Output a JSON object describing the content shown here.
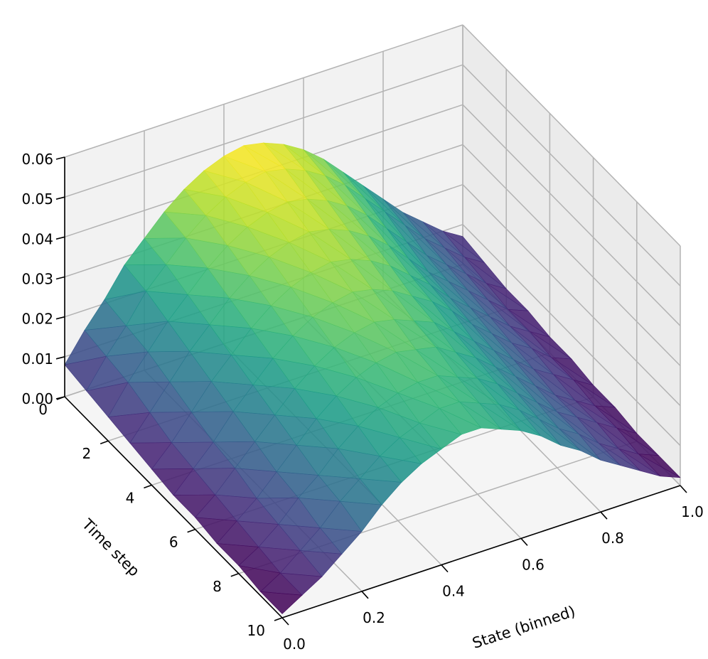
{
  "chart_data": {
    "type": "surface3d",
    "xlabel": "State (binned)",
    "ylabel": "Time step",
    "zlabel": "",
    "x_ticks": [
      "0.0",
      "0.2",
      "0.4",
      "0.6",
      "0.8",
      "1.0"
    ],
    "y_ticks": [
      "0",
      "2",
      "4",
      "6",
      "8",
      "10"
    ],
    "z_ticks": [
      "0.00",
      "0.01",
      "0.02",
      "0.03",
      "0.04",
      "0.05",
      "0.06"
    ],
    "xlim": [
      0,
      1
    ],
    "ylim": [
      0,
      10
    ],
    "zlim": [
      0,
      0.06
    ],
    "colormap": "viridis",
    "grid": true,
    "x_bins": [
      0.0,
      0.05,
      0.1,
      0.15,
      0.2,
      0.25,
      0.3,
      0.35,
      0.4,
      0.45,
      0.5,
      0.55,
      0.6,
      0.65,
      0.7,
      0.75,
      0.8,
      0.85,
      0.9,
      0.95,
      1.0
    ],
    "time_steps": [
      0,
      1,
      2,
      3,
      4,
      5,
      6,
      7,
      8,
      9,
      10
    ],
    "z": [
      [
        0.008,
        0.015,
        0.021,
        0.028,
        0.033,
        0.038,
        0.042,
        0.045,
        0.047,
        0.048,
        0.047,
        0.045,
        0.042,
        0.038,
        0.033,
        0.028,
        0.023,
        0.018,
        0.014,
        0.01,
        0.007
      ],
      [
        0.007,
        0.014,
        0.02,
        0.027,
        0.032,
        0.037,
        0.041,
        0.044,
        0.046,
        0.047,
        0.046,
        0.044,
        0.041,
        0.037,
        0.032,
        0.027,
        0.022,
        0.017,
        0.013,
        0.009,
        0.006
      ],
      [
        0.006,
        0.013,
        0.019,
        0.025,
        0.03,
        0.035,
        0.039,
        0.042,
        0.044,
        0.045,
        0.044,
        0.042,
        0.039,
        0.035,
        0.03,
        0.025,
        0.02,
        0.016,
        0.012,
        0.008,
        0.005
      ],
      [
        0.005,
        0.011,
        0.017,
        0.023,
        0.028,
        0.033,
        0.037,
        0.04,
        0.042,
        0.043,
        0.042,
        0.04,
        0.037,
        0.033,
        0.028,
        0.023,
        0.019,
        0.015,
        0.011,
        0.007,
        0.005
      ],
      [
        0.004,
        0.009,
        0.015,
        0.021,
        0.026,
        0.031,
        0.035,
        0.038,
        0.04,
        0.041,
        0.04,
        0.038,
        0.035,
        0.031,
        0.027,
        0.022,
        0.018,
        0.014,
        0.01,
        0.007,
        0.004
      ],
      [
        0.003,
        0.008,
        0.013,
        0.019,
        0.024,
        0.029,
        0.033,
        0.036,
        0.038,
        0.039,
        0.038,
        0.036,
        0.033,
        0.03,
        0.026,
        0.021,
        0.017,
        0.013,
        0.01,
        0.006,
        0.004
      ],
      [
        0.003,
        0.007,
        0.012,
        0.017,
        0.022,
        0.027,
        0.031,
        0.034,
        0.036,
        0.037,
        0.036,
        0.034,
        0.032,
        0.028,
        0.024,
        0.02,
        0.016,
        0.012,
        0.009,
        0.006,
        0.003
      ],
      [
        0.002,
        0.006,
        0.01,
        0.015,
        0.02,
        0.025,
        0.029,
        0.032,
        0.034,
        0.035,
        0.034,
        0.033,
        0.03,
        0.027,
        0.023,
        0.019,
        0.015,
        0.011,
        0.008,
        0.005,
        0.003
      ],
      [
        0.002,
        0.005,
        0.009,
        0.014,
        0.018,
        0.023,
        0.027,
        0.03,
        0.032,
        0.033,
        0.033,
        0.031,
        0.029,
        0.026,
        0.022,
        0.018,
        0.014,
        0.011,
        0.008,
        0.005,
        0.002
      ],
      [
        0.001,
        0.004,
        0.008,
        0.012,
        0.017,
        0.021,
        0.025,
        0.028,
        0.03,
        0.032,
        0.032,
        0.03,
        0.028,
        0.025,
        0.021,
        0.017,
        0.014,
        0.01,
        0.007,
        0.004,
        0.002
      ],
      [
        0.001,
        0.004,
        0.007,
        0.011,
        0.015,
        0.02,
        0.024,
        0.027,
        0.029,
        0.031,
        0.031,
        0.029,
        0.027,
        0.024,
        0.02,
        0.017,
        0.013,
        0.01,
        0.007,
        0.004,
        0.002
      ]
    ]
  }
}
